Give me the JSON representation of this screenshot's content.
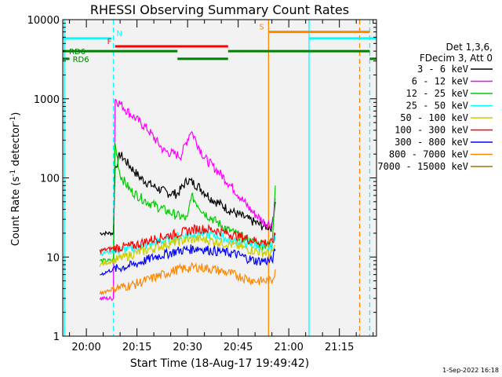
{
  "chart_data": {
    "type": "line",
    "title": "RHESSI Observing Summary Count Rates",
    "xlabel": "Start Time (18-Aug-17 19:49:42)",
    "ylabel": "Count Rate (s⁻¹ detector⁻¹)",
    "ylabel_parts": {
      "main": "Count Rate (s",
      "sup1": "-1",
      "mid": " detector",
      "sup2": "-1",
      "end": ")"
    },
    "y_scale": "log",
    "ylim": [
      1,
      10000
    ],
    "xlim_minutes": [
      -7,
      86
    ],
    "x_tick_labels": [
      "20:00",
      "20:15",
      "20:30",
      "20:45",
      "21:00",
      "21:15"
    ],
    "x_tick_minutes": [
      0,
      15,
      30,
      45,
      60,
      75
    ],
    "y_tick_labels": [
      "1",
      "10",
      "100",
      "1000",
      "10000"
    ],
    "y_tick_values": [
      1,
      10,
      100,
      1000,
      10000
    ],
    "legend_header": [
      "Det 1,3,6,",
      "FDecim 3, Att 0"
    ],
    "series": [
      {
        "name": "3 - 6 keV",
        "color": "#000000",
        "points": [
          [
            4,
            20
          ],
          [
            8,
            20
          ],
          [
            8.5,
            130
          ],
          [
            10,
            200
          ],
          [
            13,
            140
          ],
          [
            16,
            100
          ],
          [
            20,
            78
          ],
          [
            24,
            65
          ],
          [
            27,
            63
          ],
          [
            30,
            95
          ],
          [
            33,
            80
          ],
          [
            37,
            55
          ],
          [
            43,
            38
          ],
          [
            48,
            30
          ],
          [
            52,
            25
          ],
          [
            55,
            24
          ],
          [
            56,
            50
          ]
        ]
      },
      {
        "name": "6 - 12 keV",
        "color": "#ff00ff",
        "points": [
          [
            4,
            3
          ],
          [
            8,
            3
          ],
          [
            8.5,
            1000
          ],
          [
            13,
            650
          ],
          [
            18,
            420
          ],
          [
            23,
            220
          ],
          [
            28,
            190
          ],
          [
            31,
            400
          ],
          [
            35,
            180
          ],
          [
            40,
            110
          ],
          [
            44,
            70
          ],
          [
            49,
            38
          ],
          [
            53,
            27
          ],
          [
            55,
            26
          ],
          [
            56,
            55
          ]
        ]
      },
      {
        "name": "12 - 25 keV",
        "color": "#00cc00",
        "points": [
          [
            4,
            9
          ],
          [
            8,
            9
          ],
          [
            8.5,
            270
          ],
          [
            10,
            110
          ],
          [
            13,
            70
          ],
          [
            18,
            50
          ],
          [
            24,
            38
          ],
          [
            30,
            30
          ],
          [
            31,
            60
          ],
          [
            35,
            36
          ],
          [
            42,
            22
          ],
          [
            50,
            15
          ],
          [
            55,
            14
          ],
          [
            56,
            80
          ]
        ]
      },
      {
        "name": "25 - 50 keV",
        "color": "#00ffff",
        "points": [
          [
            4,
            11
          ],
          [
            8,
            12
          ],
          [
            14,
            13
          ],
          [
            20,
            15
          ],
          [
            27,
            18
          ],
          [
            33,
            20
          ],
          [
            38,
            19
          ],
          [
            44,
            16
          ],
          [
            50,
            14
          ],
          [
            55,
            13
          ],
          [
            56,
            20
          ]
        ]
      },
      {
        "name": "50 - 100 keV",
        "color": "#cccc00",
        "points": [
          [
            4,
            8
          ],
          [
            8,
            9
          ],
          [
            14,
            11
          ],
          [
            20,
            13
          ],
          [
            27,
            16
          ],
          [
            33,
            17
          ],
          [
            38,
            16
          ],
          [
            44,
            14
          ],
          [
            50,
            12
          ],
          [
            55,
            11
          ],
          [
            56,
            14
          ]
        ]
      },
      {
        "name": "100 - 300 keV",
        "color": "#ff0000",
        "points": [
          [
            4,
            12
          ],
          [
            8,
            13
          ],
          [
            14,
            14
          ],
          [
            20,
            17
          ],
          [
            27,
            20
          ],
          [
            33,
            23
          ],
          [
            38,
            22
          ],
          [
            44,
            19
          ],
          [
            50,
            16
          ],
          [
            55,
            15
          ],
          [
            56,
            19
          ]
        ]
      },
      {
        "name": "300 - 800 keV",
        "color": "#0000ff",
        "points": [
          [
            4,
            6
          ],
          [
            8,
            7
          ],
          [
            14,
            8
          ],
          [
            20,
            10
          ],
          [
            27,
            12
          ],
          [
            33,
            13
          ],
          [
            38,
            12
          ],
          [
            44,
            11
          ],
          [
            50,
            9
          ],
          [
            55,
            9
          ],
          [
            56,
            12
          ]
        ]
      },
      {
        "name": "800 - 7000 keV",
        "color": "#ff8800",
        "points": [
          [
            4,
            3.5
          ],
          [
            8,
            4
          ],
          [
            14,
            4.5
          ],
          [
            20,
            5.5
          ],
          [
            27,
            7
          ],
          [
            33,
            7.5
          ],
          [
            38,
            7
          ],
          [
            44,
            6
          ],
          [
            50,
            5
          ],
          [
            55,
            5
          ],
          [
            56,
            7
          ]
        ]
      },
      {
        "name": "7000 - 15000 keV",
        "color": "#997700",
        "points": []
      }
    ],
    "flag_bars": [
      {
        "label": "N",
        "color": "#00ffff",
        "y": 5800,
        "segments": [
          [
            -7,
            7.5
          ],
          [
            66,
            86
          ]
        ]
      },
      {
        "label": "F",
        "color": "#ff0000",
        "y": 4600,
        "segments": [
          [
            8.5,
            42
          ]
        ]
      },
      {
        "label": "S",
        "color": "#ff8800",
        "y": 7000,
        "segments": [
          [
            54,
            84
          ]
        ]
      },
      {
        "label": "RD6",
        "color": "#008000",
        "y": 4000,
        "segments": [
          [
            -7,
            27
          ],
          [
            42,
            84
          ]
        ]
      },
      {
        "label": "RD6",
        "color": "#008000",
        "y": 3200,
        "segments": [
          [
            -7,
            -5
          ],
          [
            27,
            42
          ],
          [
            84,
            86
          ]
        ]
      }
    ],
    "vlines": [
      {
        "minute": -6.5,
        "color": "#00ffff",
        "dashed": false
      },
      {
        "minute": 8,
        "color": "#00ffff",
        "dashed": true
      },
      {
        "minute": 54,
        "color": "#ff8800",
        "dashed": false
      },
      {
        "minute": 66,
        "color": "#00ffff",
        "dashed": false
      },
      {
        "minute": 81,
        "color": "#ff8800",
        "dashed": true
      },
      {
        "minute": 84,
        "color": "#00ffff",
        "dashed": true
      }
    ],
    "date_stamp": "1-Sep-2022 16:18"
  }
}
